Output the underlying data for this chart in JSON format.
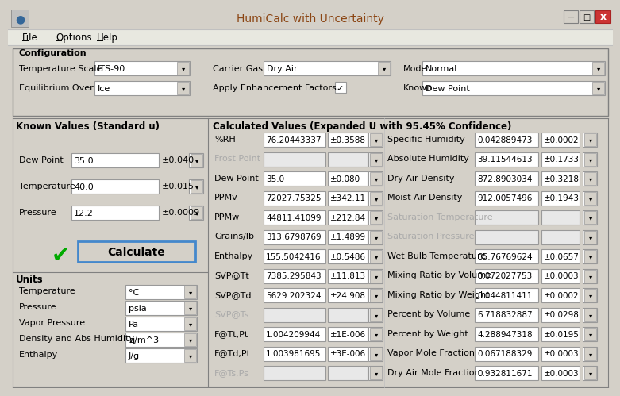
{
  "title": "HumiCalc with Uncertainty",
  "bg_color": "#D4D0C8",
  "white": "#FFFFFF",
  "gray_light": "#E8E8E8",
  "border_color": "#999999",
  "dark_border": "#808080",
  "title_color": "#8B4513",
  "menu_items": [
    "File",
    "Options",
    "Help"
  ],
  "config_section": "Configuration",
  "temp_scale_label": "Temperature Scale",
  "temp_scale_value": "ITS-90",
  "carrier_gas_label": "Carrier Gas",
  "carrier_gas_value": "Dry Air",
  "mode_label": "Mode",
  "mode_value": "Normal",
  "equil_label": "Equilibrium Over",
  "equil_value": "Ice",
  "enhancement_label": "Apply Enhancement Factors",
  "known_label": "Known",
  "known_value": "Dew Point",
  "known_section": "Known Values (Standard u)",
  "calc_section": "Calculated Values (Expanded U with 95.45% Confidence)",
  "known_fields": [
    {
      "label": "Dew Point",
      "value": "35.0",
      "unc": "±0.040"
    },
    {
      "label": "Temperature",
      "value": "40.0",
      "unc": "±0.015"
    },
    {
      "label": "Pressure",
      "value": "12.2",
      "unc": "±0.0009"
    }
  ],
  "units_section": "Units",
  "units_fields": [
    {
      "label": "Temperature",
      "value": "°C"
    },
    {
      "label": "Pressure",
      "value": "psia"
    },
    {
      "label": "Vapor Pressure",
      "value": "Pa"
    },
    {
      "label": "Density and Abs Humidity",
      "value": "g/m^3"
    },
    {
      "label": "Enthalpy",
      "value": "J/g"
    }
  ],
  "calc_left": [
    {
      "label": "%RH",
      "value": "76.20443337",
      "unc": "±0.3588",
      "active": true
    },
    {
      "label": "Frost Point",
      "value": "",
      "unc": "",
      "active": false
    },
    {
      "label": "Dew Point",
      "value": "35.0",
      "unc": "±0.080",
      "active": true
    },
    {
      "label": "PPMv",
      "value": "72027.75325",
      "unc": "±342.11",
      "active": true
    },
    {
      "label": "PPMw",
      "value": "44811.41099",
      "unc": "±212.84",
      "active": true
    },
    {
      "label": "Grains/lb",
      "value": "313.6798769",
      "unc": "±1.4899",
      "active": true
    },
    {
      "label": "Enthalpy",
      "value": "155.5042416",
      "unc": "±0.5486",
      "active": true
    },
    {
      "label": "SVP@Tt",
      "value": "7385.295843",
      "unc": "±11.813",
      "active": true
    },
    {
      "label": "SVP@Td",
      "value": "5629.202324",
      "unc": "±24.908",
      "active": true
    },
    {
      "label": "SVP@Ts",
      "value": "",
      "unc": "",
      "active": false
    },
    {
      "label": "F@Tt,Pt",
      "value": "1.004209944",
      "unc": "±1E-006",
      "active": true
    },
    {
      "label": "F@Td,Pt",
      "value": "1.003981695",
      "unc": "±3E-006",
      "active": true
    },
    {
      "label": "F@Ts,Ps",
      "value": "",
      "unc": "",
      "active": false
    }
  ],
  "calc_right": [
    {
      "label": "Specific Humidity",
      "value": "0.042889473",
      "unc": "±0.0002",
      "active": true
    },
    {
      "label": "Absolute Humidity",
      "value": "39.11544613",
      "unc": "±0.1733",
      "active": true
    },
    {
      "label": "Dry Air Density",
      "value": "872.8903034",
      "unc": "±0.3218",
      "active": true
    },
    {
      "label": "Moist Air Density",
      "value": "912.0057496",
      "unc": "±0.1943",
      "active": true
    },
    {
      "label": "Saturation Temperature",
      "value": "",
      "unc": "",
      "active": false
    },
    {
      "label": "Saturation Pressure",
      "value": "",
      "unc": "",
      "active": false
    },
    {
      "label": "Wet Bulb Temperature",
      "value": "35.76769624",
      "unc": "±0.0657",
      "active": true
    },
    {
      "label": "Mixing Ratio by Volume",
      "value": "0.072027753",
      "unc": "±0.0003",
      "active": true
    },
    {
      "label": "Mixing Ratio by Weight",
      "value": "0.044811411",
      "unc": "±0.0002",
      "active": true
    },
    {
      "label": "Percent by Volume",
      "value": "6.718832887",
      "unc": "±0.0298",
      "active": true
    },
    {
      "label": "Percent by Weight",
      "value": "4.288947318",
      "unc": "±0.0195",
      "active": true
    },
    {
      "label": "Vapor Mole Fraction",
      "value": "0.067188329",
      "unc": "±0.0003",
      "active": true
    },
    {
      "label": "Dry Air Mole Fraction",
      "value": "0.932811671",
      "unc": "±0.0003",
      "active": true
    }
  ]
}
